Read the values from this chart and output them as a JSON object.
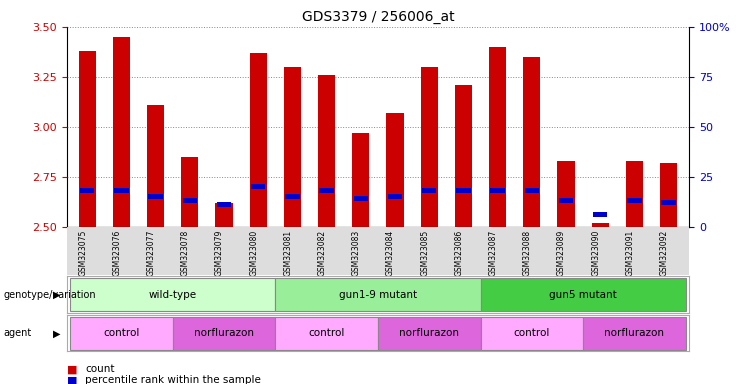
{
  "title": "GDS3379 / 256006_at",
  "samples": [
    "GSM323075",
    "GSM323076",
    "GSM323077",
    "GSM323078",
    "GSM323079",
    "GSM323080",
    "GSM323081",
    "GSM323082",
    "GSM323083",
    "GSM323084",
    "GSM323085",
    "GSM323086",
    "GSM323087",
    "GSM323088",
    "GSM323089",
    "GSM323090",
    "GSM323091",
    "GSM323092"
  ],
  "count_values": [
    3.38,
    3.45,
    3.11,
    2.85,
    2.62,
    3.37,
    3.3,
    3.26,
    2.97,
    3.07,
    3.3,
    3.21,
    3.4,
    3.35,
    2.83,
    2.52,
    2.83,
    2.82
  ],
  "percentile_values": [
    2.68,
    2.68,
    2.65,
    2.63,
    2.61,
    2.7,
    2.65,
    2.68,
    2.64,
    2.65,
    2.68,
    2.68,
    2.68,
    2.68,
    2.63,
    2.56,
    2.63,
    2.62
  ],
  "bar_color": "#cc0000",
  "blue_color": "#0000cc",
  "ylim_left": [
    2.5,
    3.5
  ],
  "yticks_left": [
    2.5,
    2.75,
    3.0,
    3.25,
    3.5
  ],
  "yticks_right": [
    0,
    25,
    50,
    75,
    100
  ],
  "ylabel_left_color": "#cc0000",
  "ylabel_right_color": "#0000cc",
  "grid_color": "#888888",
  "bg_color": "#dddddd",
  "plot_bg": "#ffffff",
  "genotype_groups": [
    {
      "label": "wild-type",
      "start": 0,
      "end": 5,
      "color": "#ccffcc"
    },
    {
      "label": "gun1-9 mutant",
      "start": 6,
      "end": 11,
      "color": "#99ee99"
    },
    {
      "label": "gun5 mutant",
      "start": 12,
      "end": 17,
      "color": "#44cc44"
    }
  ],
  "agent_groups": [
    {
      "label": "control",
      "start": 0,
      "end": 2,
      "color": "#ffaaff"
    },
    {
      "label": "norflurazon",
      "start": 3,
      "end": 5,
      "color": "#dd66dd"
    },
    {
      "label": "control",
      "start": 6,
      "end": 8,
      "color": "#ffaaff"
    },
    {
      "label": "norflurazon",
      "start": 9,
      "end": 11,
      "color": "#dd66dd"
    },
    {
      "label": "control",
      "start": 12,
      "end": 14,
      "color": "#ffaaff"
    },
    {
      "label": "norflurazon",
      "start": 15,
      "end": 17,
      "color": "#dd66dd"
    }
  ],
  "legend_count_label": "count",
  "legend_pct_label": "percentile rank within the sample",
  "genotype_label": "genotype/variation",
  "agent_label": "agent"
}
